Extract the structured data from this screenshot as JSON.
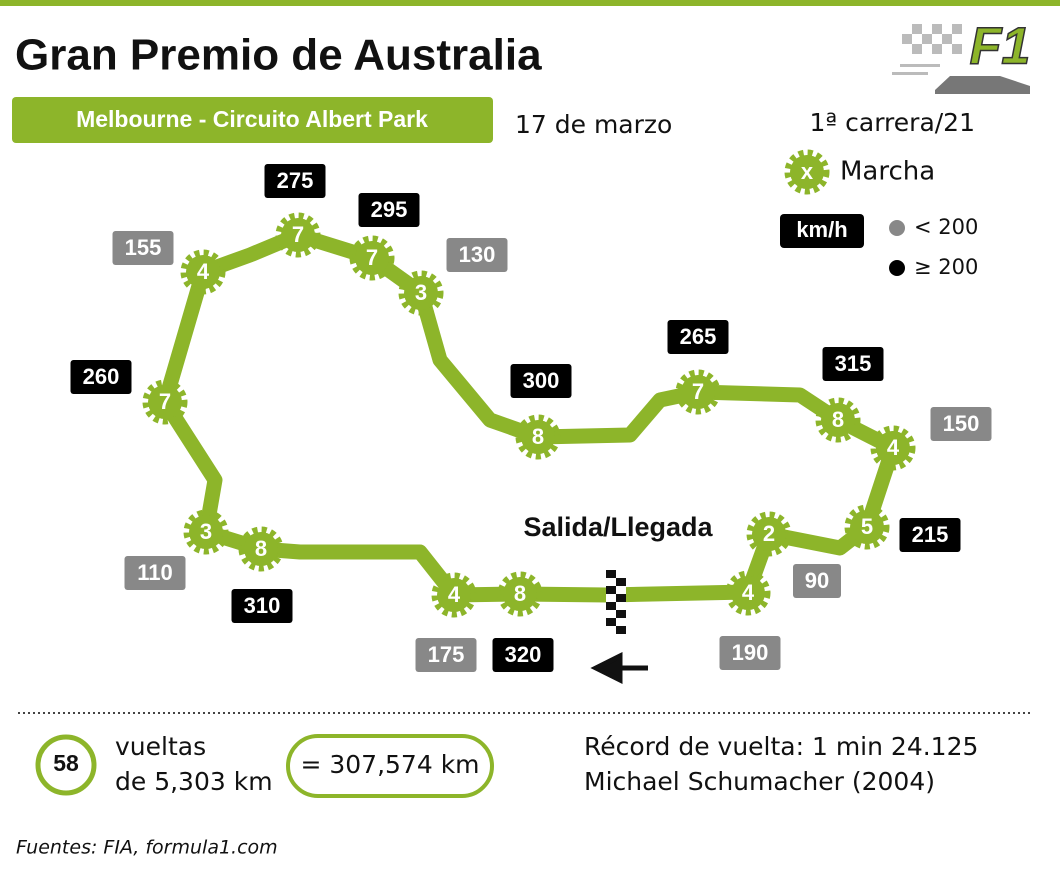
{
  "logo": "F1",
  "header": {
    "title": "Gran Premio de Australia",
    "location": "Melbourne - Circuito Albert Park",
    "date": "17 de marzo",
    "race_number": "1ª carrera/21"
  },
  "legend": {
    "gear_symbol": "x",
    "gear_label": "Marcha",
    "speed_unit": "km/h",
    "speed_classes": [
      {
        "label": "< 200",
        "color": "#888888"
      },
      {
        "label": "≥ 200",
        "color": "#000000"
      }
    ]
  },
  "track": {
    "start_finish": "Salida/Llegada",
    "color": "#8db52a",
    "corners": [
      {
        "gear": "4",
        "speed": 155,
        "color": "#888888"
      },
      {
        "gear": "7",
        "speed": 275,
        "color": "#000000"
      },
      {
        "gear": "7",
        "speed": 295,
        "color": "#000000"
      },
      {
        "gear": "3",
        "speed": 130,
        "color": "#888888"
      },
      {
        "gear": "7",
        "speed": 260,
        "color": "#000000"
      },
      {
        "gear": "8",
        "speed": 300,
        "color": "#000000"
      },
      {
        "gear": "7",
        "speed": 265,
        "color": "#000000"
      },
      {
        "gear": "8",
        "speed": 315,
        "color": "#000000"
      },
      {
        "gear": "4",
        "speed": 150,
        "color": "#888888"
      },
      {
        "gear": "3",
        "speed": 110,
        "color": "#888888"
      },
      {
        "gear": "8",
        "speed": 310,
        "color": "#000000"
      },
      {
        "gear": "5",
        "speed": 215,
        "color": "#000000"
      },
      {
        "gear": "2",
        "speed": 90,
        "color": "#888888"
      },
      {
        "gear": "4",
        "speed": 175,
        "color": "#888888"
      },
      {
        "gear": "8",
        "speed": 320,
        "color": "#000000"
      },
      {
        "gear": "4",
        "speed": 190,
        "color": "#888888"
      }
    ]
  },
  "footer": {
    "laps": 58,
    "laps_text": [
      "vueltas",
      "de 5,303 km"
    ],
    "total": "= 307,574 km",
    "record": [
      "Récord de vuelta: 1 min 24.125",
      "Michael Schumacher (2004)"
    ],
    "source": "Fuentes: FIA, formula1.com"
  }
}
